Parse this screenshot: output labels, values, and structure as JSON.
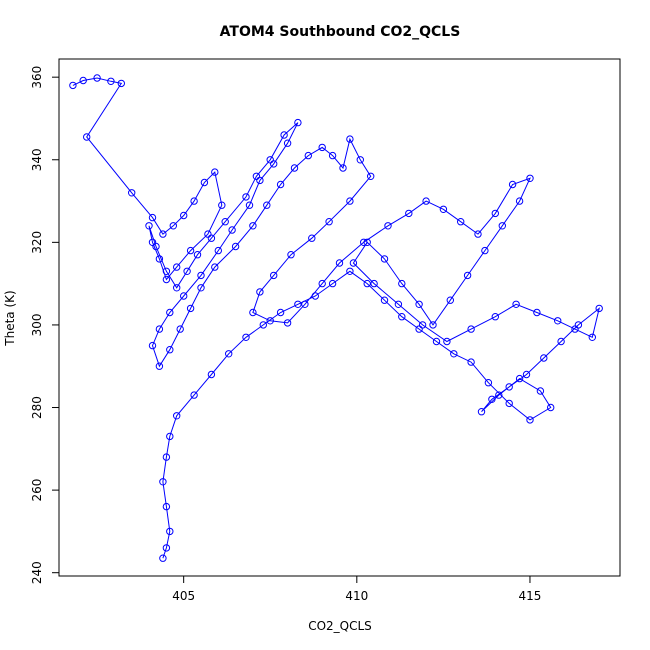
{
  "chart_data": {
    "type": "line",
    "title": "ATOM4 Southbound CO2_QCLS",
    "xlabel": "CO2_QCLS",
    "ylabel": "Theta (K)",
    "xlim": [
      401.4,
      417.6
    ],
    "ylim": [
      239.2,
      364.4
    ],
    "xticks": [
      405,
      410,
      415
    ],
    "yticks": [
      240,
      260,
      280,
      300,
      320,
      340,
      360
    ],
    "grid": false,
    "legend": "none",
    "marker": "open-circle",
    "series": [
      {
        "color": "#0000ff",
        "x": [
          401.8,
          402.1,
          402.5,
          402.9,
          403.2,
          402.2,
          403.5,
          404.1,
          404.4,
          404.7,
          405.0,
          405.3,
          405.6,
          405.9,
          406.1,
          405.7,
          405.2,
          404.8,
          404.5,
          404.3,
          404.1,
          404.0,
          404.2,
          404.5,
          404.8,
          405.1,
          405.4,
          405.8,
          406.2,
          406.8,
          407.1,
          407.5,
          407.9,
          408.3,
          408.0,
          407.6,
          407.2,
          406.9,
          406.4,
          406.0,
          405.5,
          405.0,
          404.6,
          404.3,
          404.1,
          404.3,
          404.6,
          404.9,
          405.2,
          405.5,
          405.9,
          406.5,
          407.0,
          407.4,
          407.8,
          408.2,
          408.6,
          409.0,
          409.3,
          409.6,
          409.8,
          410.1,
          410.4,
          409.8,
          409.2,
          408.7,
          408.1,
          407.6,
          407.2,
          407.0,
          407.5,
          408.0,
          408.5,
          409.0,
          409.5,
          410.2,
          410.9,
          411.5,
          412.0,
          412.5,
          413.0,
          413.5,
          414.0,
          414.5,
          415.0,
          414.7,
          414.2,
          413.7,
          413.2,
          412.7,
          412.2,
          411.8,
          411.3,
          410.8,
          410.3,
          409.9,
          410.5,
          411.2,
          411.9,
          412.6,
          413.3,
          414.0,
          414.6,
          415.2,
          415.8,
          416.3,
          416.8,
          417.0,
          416.4,
          415.9,
          415.4,
          414.9,
          414.4,
          413.9,
          413.6,
          414.1,
          414.7,
          415.3,
          415.6,
          415.0,
          414.4,
          413.8,
          413.3,
          412.8,
          412.3,
          411.8,
          411.3,
          410.8,
          410.3,
          409.8,
          409.3,
          408.8,
          408.3,
          407.8,
          407.3,
          406.8,
          406.3,
          405.8,
          405.3,
          404.8,
          404.6,
          404.5,
          404.4,
          404.5,
          404.6,
          404.5,
          404.4
        ],
        "y": [
          358.0,
          359.2,
          359.8,
          359.0,
          358.5,
          345.5,
          332.0,
          326.0,
          322.0,
          324.0,
          326.5,
          330.0,
          334.5,
          337.0,
          329.0,
          322.0,
          318.0,
          314.0,
          311.0,
          316.0,
          320.0,
          324.0,
          319.0,
          313.0,
          309.0,
          313.0,
          317.0,
          321.0,
          325.0,
          331.0,
          336.0,
          340.0,
          346.0,
          349.0,
          344.0,
          339.0,
          335.0,
          329.0,
          323.0,
          318.0,
          312.0,
          307.0,
          303.0,
          299.0,
          295.0,
          290.0,
          294.0,
          299.0,
          304.0,
          309.0,
          314.0,
          319.0,
          324.0,
          329.0,
          334.0,
          338.0,
          341.0,
          343.0,
          341.0,
          338.0,
          345.0,
          340.0,
          336.0,
          330.0,
          325.0,
          321.0,
          317.0,
          312.0,
          308.0,
          303.0,
          301.0,
          300.5,
          305.0,
          310.0,
          315.0,
          320.0,
          324.0,
          327.0,
          330.0,
          328.0,
          325.0,
          322.0,
          327.0,
          334.0,
          335.5,
          330.0,
          324.0,
          318.0,
          312.0,
          306.0,
          300.0,
          305.0,
          310.0,
          316.0,
          320.0,
          315.0,
          310.0,
          305.0,
          300.0,
          296.0,
          299.0,
          302.0,
          305.0,
          303.0,
          301.0,
          299.0,
          297.0,
          304.0,
          300.0,
          296.0,
          292.0,
          288.0,
          285.0,
          282.0,
          279.0,
          283.0,
          287.0,
          284.0,
          280.0,
          277.0,
          281.0,
          286.0,
          291.0,
          293.0,
          296.0,
          299.0,
          302.0,
          306.0,
          310.0,
          313.0,
          310.0,
          307.0,
          305.0,
          303.0,
          300.0,
          297.0,
          293.0,
          288.0,
          283.0,
          278.0,
          273.0,
          268.0,
          262.0,
          256.0,
          250.0,
          246.0,
          243.5
        ]
      }
    ]
  }
}
